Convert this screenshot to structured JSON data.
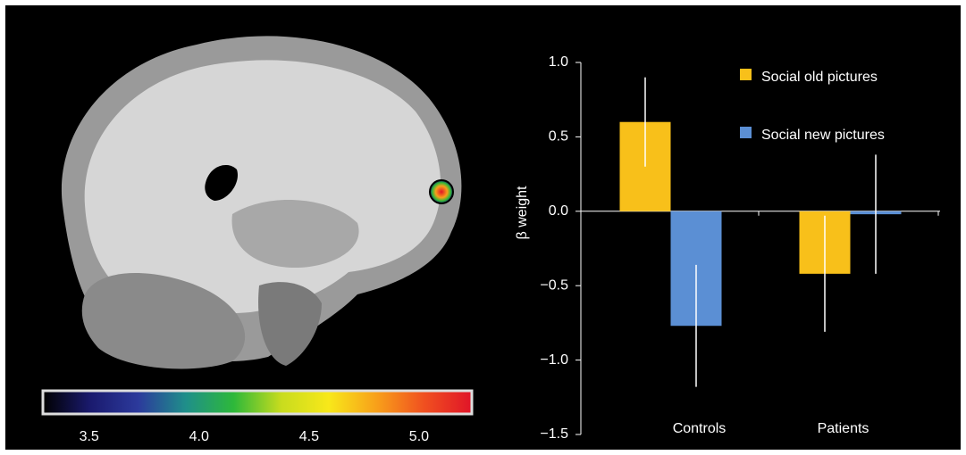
{
  "chart_data": [
    {
      "type": "colorbar",
      "clim": [
        3.29,
        5.24
      ],
      "cticks": [
        3.5,
        {
          "value": 4,
          "label": "4.0"
        },
        4.5,
        {
          "value": 5,
          "label": "5.0"
        }
      ],
      "colormap": [
        "#000000",
        "#1a1a6e",
        "#2c3a9c",
        "#1f8f8a",
        "#2db83a",
        "#c8dc1e",
        "#f8e81a",
        "#f8a01a",
        "#f05020",
        "#e01428"
      ]
    },
    {
      "type": "bar",
      "ylabel": "β weight",
      "categories": [
        "Controls",
        "Patients"
      ],
      "series": [
        {
          "name": "Social old pictures",
          "color": "#f8c01a",
          "values": [
            0.6,
            -0.42
          ],
          "errors": [
            0.3,
            0.39
          ]
        },
        {
          "name": "Social new pictures",
          "color": "#5b8fd4",
          "values": [
            -0.77,
            -0.02
          ],
          "errors": [
            0.41,
            0.4
          ]
        }
      ],
      "ylim": [
        -1.5,
        1.0
      ],
      "yticks": [
        {
          "value": -1.5,
          "label": "−1.5"
        },
        {
          "value": -1,
          "label": "−1.0"
        },
        {
          "value": -0.5,
          "label": "−0.5"
        },
        {
          "value": 0,
          "label": "0.0"
        },
        0.5,
        {
          "value": 1,
          "label": "1.0"
        }
      ],
      "legend": "top-right"
    }
  ]
}
